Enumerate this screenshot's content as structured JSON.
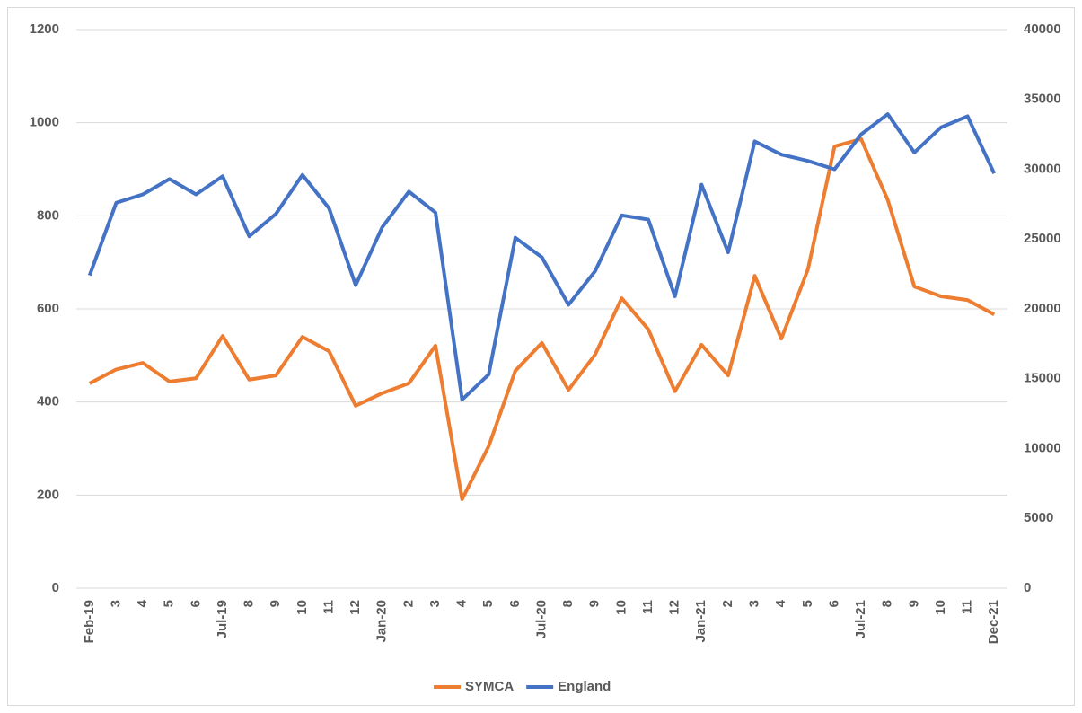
{
  "chart_data": {
    "type": "line",
    "categories": [
      "Feb-19",
      "3",
      "4",
      "5",
      "6",
      "Jul-19",
      "8",
      "9",
      "10",
      "11",
      "12",
      "Jan-20",
      "2",
      "3",
      "4",
      "5",
      "6",
      "Jul-20",
      "8",
      "9",
      "10",
      "11",
      "12",
      "Jan-21",
      "2",
      "3",
      "4",
      "5",
      "6",
      "Jul-21",
      "8",
      "9",
      "10",
      "11",
      "Dec-21"
    ],
    "series": [
      {
        "name": "SYMCA",
        "color": "#ed7d31",
        "axis": "y",
        "values": [
          440,
          470,
          484,
          444,
          451,
          542,
          448,
          457,
          540,
          509,
          392,
          419,
          440,
          521,
          191,
          305,
          467,
          527,
          426,
          502,
          623,
          556,
          423,
          523,
          457,
          671,
          536,
          685,
          949,
          965,
          834,
          648,
          627,
          619,
          588
        ]
      },
      {
        "name": "England",
        "color": "#4472c4",
        "axis": "y2",
        "values": [
          22400,
          27600,
          28200,
          29300,
          28200,
          29500,
          25200,
          26800,
          29600,
          27200,
          21700,
          25850,
          28400,
          26900,
          13500,
          15300,
          25100,
          23700,
          20300,
          22700,
          26700,
          26400,
          20900,
          28900,
          24050,
          32000,
          31050,
          30600,
          30000,
          32500,
          33950,
          31200,
          33000,
          33800,
          29700
        ]
      }
    ],
    "ylim": [
      0,
      1200
    ],
    "yticks": [
      0,
      200,
      400,
      600,
      800,
      1000,
      1200
    ],
    "y2lim": [
      0,
      40000
    ],
    "y2ticks": [
      0,
      5000,
      10000,
      15000,
      20000,
      25000,
      30000,
      35000,
      40000
    ],
    "grid": true,
    "legend": "bottom"
  }
}
